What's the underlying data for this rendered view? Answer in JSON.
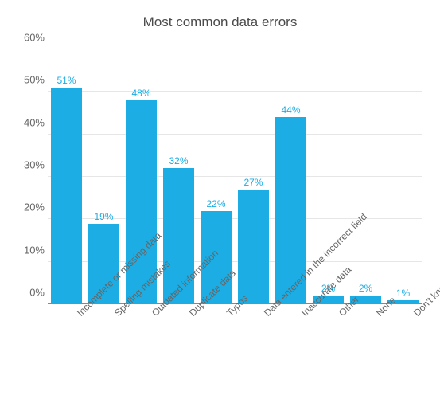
{
  "chart": {
    "type": "bar",
    "title": "Most common data errors",
    "title_fontsize": 17,
    "title_color": "#4a4a4a",
    "background_color": "#ffffff",
    "bar_color": "#1cade4",
    "value_label_color": "#1cade4",
    "value_label_fontsize": 12,
    "axis_label_color": "#666666",
    "axis_label_fontsize": 13,
    "xlabel_fontsize": 12,
    "grid_color": "#e6e6e6",
    "baseline_color": "#888888",
    "ylim_min": 0,
    "ylim_max": 60,
    "ytick_step": 10,
    "ytick_suffix": "%",
    "bar_width_ratio": 0.84,
    "xlabel_rotation_deg": -45,
    "yticks": [
      {
        "value": 0,
        "label": "0%"
      },
      {
        "value": 10,
        "label": "10%"
      },
      {
        "value": 20,
        "label": "20%"
      },
      {
        "value": 30,
        "label": "30%"
      },
      {
        "value": 40,
        "label": "40%"
      },
      {
        "value": 50,
        "label": "50%"
      },
      {
        "value": 60,
        "label": "60%"
      }
    ],
    "categories": [
      "Incomplete or missing data",
      "Spelling mistakes",
      "Outdated information",
      "Duplicate data",
      "Typos",
      "Data entered in the incorrect field",
      "Inaccurate data",
      "Other",
      "None",
      "Don't know"
    ],
    "values": [
      51,
      19,
      48,
      32,
      22,
      27,
      44,
      2,
      2,
      1
    ],
    "value_labels": [
      "51%",
      "19%",
      "48%",
      "32%",
      "22%",
      "27%",
      "44%",
      "2%",
      "2%",
      "1%"
    ]
  }
}
